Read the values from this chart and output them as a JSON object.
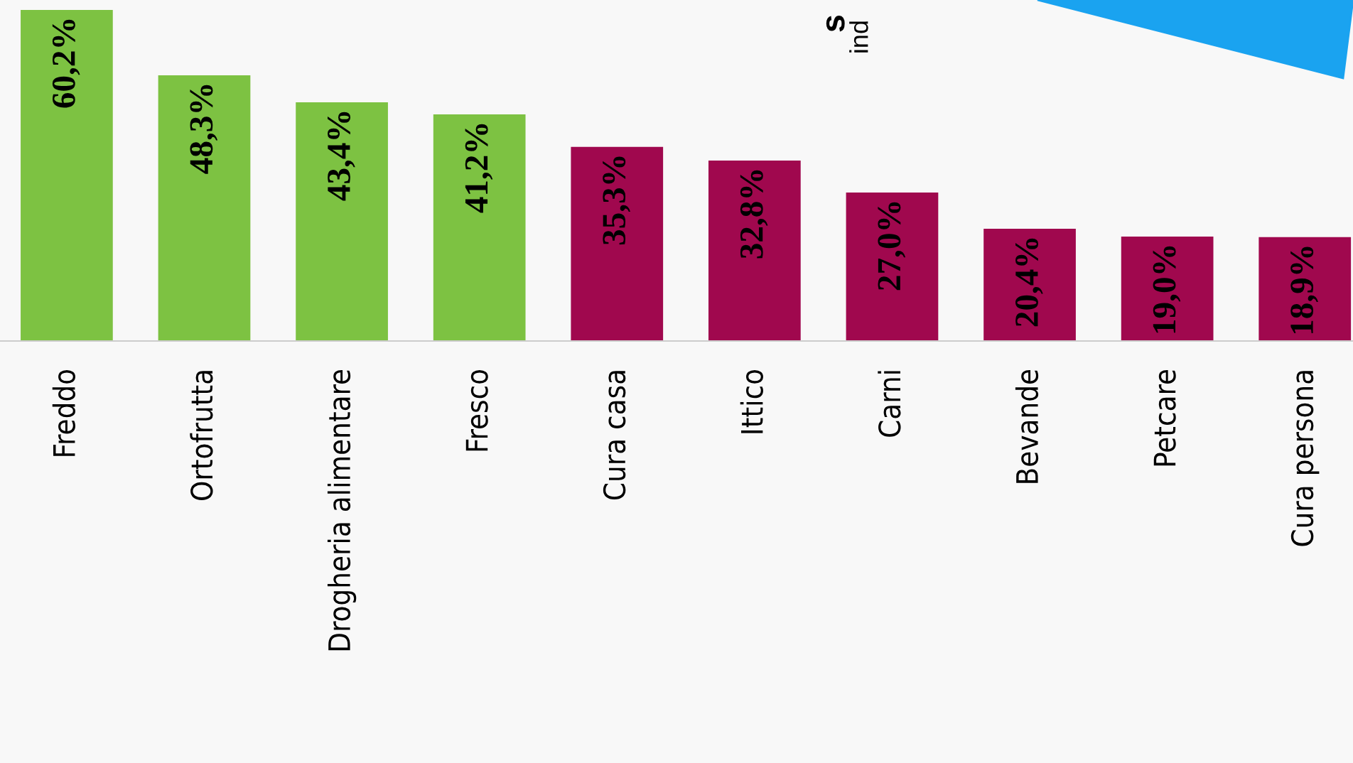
{
  "chart_data": {
    "type": "bar",
    "categories": [
      "Freddo",
      "Ortofrutta",
      "Drogheria alimentare",
      "Fresco",
      "Cura casa",
      "Ittico",
      "Carni",
      "Bevande",
      "Petcare",
      "Cura persona"
    ],
    "values": [
      60.2,
      48.3,
      43.4,
      41.2,
      35.3,
      32.8,
      27.0,
      20.4,
      19.0,
      18.9
    ],
    "value_labels": [
      "60,2%",
      "48,3%",
      "43,4%",
      "41,2%",
      "35,3%",
      "32,8%",
      "27,0%",
      "20,4%",
      "19,0%",
      "18,9%"
    ],
    "colors": [
      "#7dc242",
      "#7dc242",
      "#7dc242",
      "#7dc242",
      "#a0084e",
      "#a0084e",
      "#a0084e",
      "#a0084e",
      "#a0084e",
      "#a0084e"
    ],
    "annotations": [
      "s",
      "ind"
    ]
  }
}
